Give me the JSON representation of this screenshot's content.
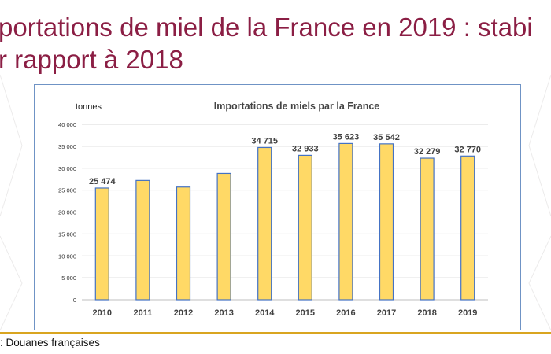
{
  "slide": {
    "title_line1": "portations de miel de la France en 2019 : stabi",
    "title_line2": "r rapport à 2018",
    "source": ": Douanes françaises",
    "title_color": "#8b1e44",
    "rule_color": "#d9a520"
  },
  "chart_data": {
    "type": "bar",
    "title": "Importations de miels  par la France",
    "ylabel": "tonnes",
    "xlabel": "",
    "categories": [
      "2010",
      "2011",
      "2012",
      "2013",
      "2014",
      "2015",
      "2016",
      "2017",
      "2018",
      "2019"
    ],
    "values": [
      25474,
      27200,
      25700,
      28800,
      34715,
      32933,
      35623,
      35542,
      32279,
      32770
    ],
    "data_labels": [
      "25 474",
      "",
      "",
      "",
      "34 715",
      "32 933",
      "35 623",
      "35 542",
      "32 279",
      "32 770"
    ],
    "ylim": [
      0,
      40000
    ],
    "yticks": [
      0,
      5000,
      10000,
      15000,
      20000,
      25000,
      30000,
      35000,
      40000
    ],
    "ytick_labels": [
      "0",
      "5 000",
      "10 000",
      "15 000",
      "20 000",
      "25 000",
      "30 000",
      "35 000",
      "40 000"
    ],
    "grid": true,
    "bar_color": "#ffd966",
    "bar_edge_color": "#4472c4",
    "legend": "none"
  }
}
